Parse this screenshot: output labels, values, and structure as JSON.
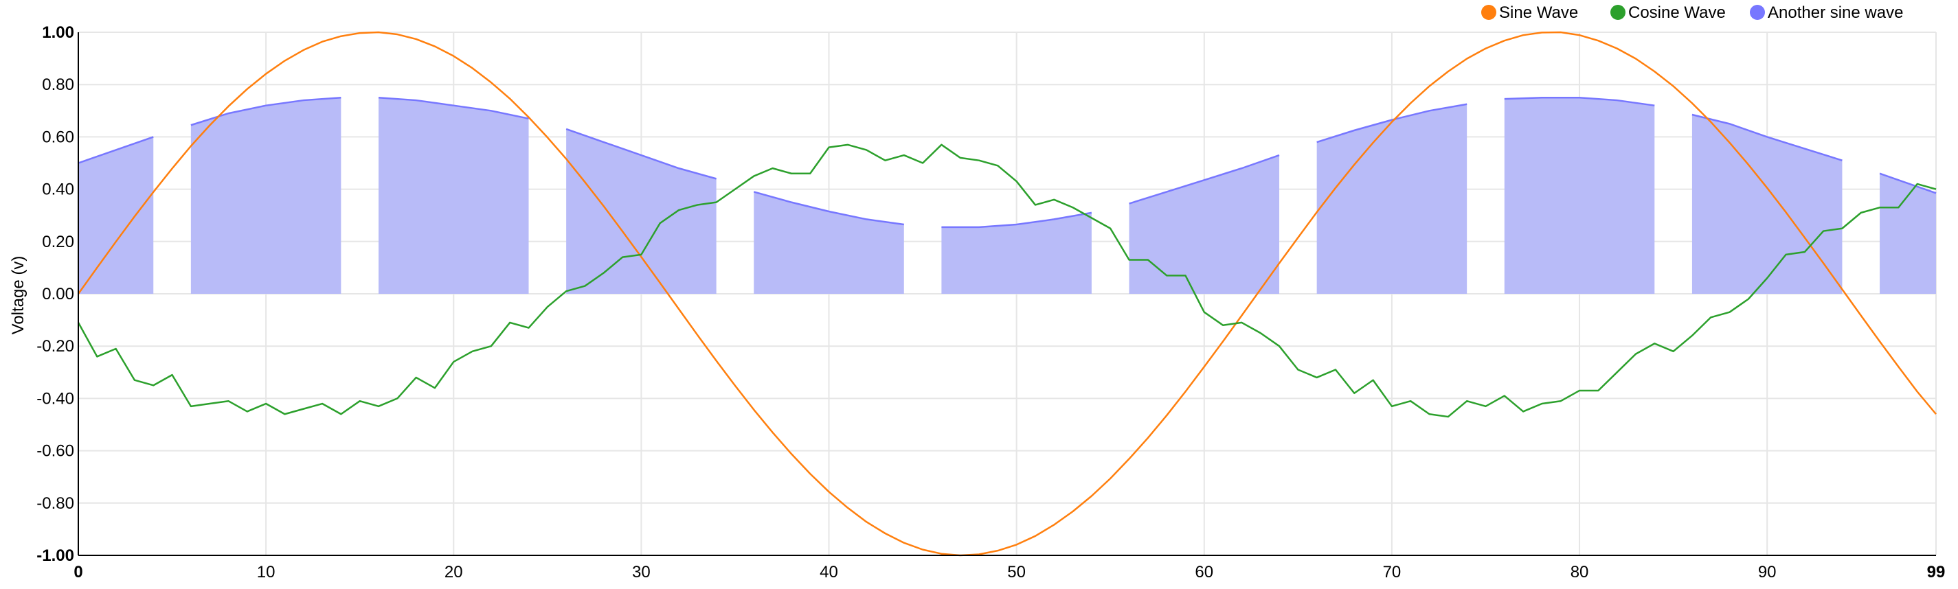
{
  "chart_data": {
    "type": "line",
    "title": "",
    "xlabel": "",
    "ylabel": "Voltage (v)",
    "xlim": [
      0,
      99
    ],
    "ylim": [
      -1,
      1
    ],
    "x_ticks": [
      "0",
      "10",
      "20",
      "30",
      "40",
      "50",
      "60",
      "70",
      "80",
      "90",
      "99"
    ],
    "y_ticks": [
      "1.00",
      "0.80",
      "0.60",
      "0.40",
      "0.20",
      "0.00",
      "-0.20",
      "-0.40",
      "-0.60",
      "-0.80",
      "-1.00"
    ],
    "grid": true,
    "legend_position": "top-right",
    "x": [
      0,
      1,
      2,
      3,
      4,
      5,
      6,
      7,
      8,
      9,
      10,
      11,
      12,
      13,
      14,
      15,
      16,
      17,
      18,
      19,
      20,
      21,
      22,
      23,
      24,
      25,
      26,
      27,
      28,
      29,
      30,
      31,
      32,
      33,
      34,
      35,
      36,
      37,
      38,
      39,
      40,
      41,
      42,
      43,
      44,
      45,
      46,
      47,
      48,
      49,
      50,
      51,
      52,
      53,
      54,
      55,
      56,
      57,
      58,
      59,
      60,
      61,
      62,
      63,
      64,
      65,
      66,
      67,
      68,
      69,
      70,
      71,
      72,
      73,
      74,
      75,
      76,
      77,
      78,
      79,
      80,
      81,
      82,
      83,
      84,
      85,
      86,
      87,
      88,
      89,
      90,
      91,
      92,
      93,
      94,
      95,
      96,
      97,
      98,
      99
    ],
    "series": [
      {
        "name": "Sine Wave",
        "color": "#ff7f0e",
        "style": "line",
        "values": [
          0.0,
          0.1,
          0.199,
          0.296,
          0.389,
          0.479,
          0.565,
          0.644,
          0.717,
          0.783,
          0.841,
          0.891,
          0.932,
          0.964,
          0.985,
          0.997,
          1.0,
          0.992,
          0.974,
          0.946,
          0.909,
          0.863,
          0.808,
          0.746,
          0.675,
          0.598,
          0.516,
          0.427,
          0.335,
          0.239,
          0.141,
          0.042,
          -0.058,
          -0.158,
          -0.256,
          -0.351,
          -0.443,
          -0.53,
          -0.612,
          -0.688,
          -0.757,
          -0.818,
          -0.872,
          -0.916,
          -0.952,
          -0.978,
          -0.994,
          -1.0,
          -0.996,
          -0.982,
          -0.959,
          -0.926,
          -0.883,
          -0.832,
          -0.773,
          -0.706,
          -0.631,
          -0.551,
          -0.465,
          -0.374,
          -0.279,
          -0.182,
          -0.083,
          0.017,
          0.117,
          0.215,
          0.312,
          0.405,
          0.494,
          0.578,
          0.657,
          0.729,
          0.794,
          0.85,
          0.899,
          0.938,
          0.968,
          0.989,
          0.999,
          1.0,
          0.989,
          0.968,
          0.938,
          0.899,
          0.85,
          0.794,
          0.729,
          0.657,
          0.578,
          0.494,
          0.405,
          0.312,
          0.215,
          0.117,
          0.017,
          -0.083,
          -0.182,
          -0.279,
          -0.374,
          -0.46
        ]
      },
      {
        "name": "Cosine Wave",
        "color": "#2ca02c",
        "style": "line",
        "values": [
          -0.11,
          -0.24,
          -0.21,
          -0.33,
          -0.35,
          -0.31,
          -0.43,
          -0.42,
          -0.41,
          -0.45,
          -0.42,
          -0.46,
          -0.44,
          -0.42,
          -0.46,
          -0.41,
          -0.43,
          -0.4,
          -0.32,
          -0.36,
          -0.26,
          -0.22,
          -0.2,
          -0.11,
          -0.13,
          -0.05,
          0.01,
          0.03,
          0.08,
          0.14,
          0.15,
          0.27,
          0.32,
          0.34,
          0.35,
          0.4,
          0.45,
          0.48,
          0.46,
          0.46,
          0.56,
          0.57,
          0.55,
          0.51,
          0.53,
          0.5,
          0.57,
          0.52,
          0.51,
          0.49,
          0.43,
          0.34,
          0.36,
          0.33,
          0.29,
          0.25,
          0.13,
          0.13,
          0.07,
          0.07,
          -0.07,
          -0.12,
          -0.11,
          -0.15,
          -0.2,
          -0.29,
          -0.32,
          -0.29,
          -0.38,
          -0.33,
          -0.43,
          -0.41,
          -0.46,
          -0.47,
          -0.41,
          -0.43,
          -0.39,
          -0.45,
          -0.42,
          -0.41,
          -0.37,
          -0.37,
          -0.3,
          -0.23,
          -0.19,
          -0.22,
          -0.16,
          -0.09,
          -0.07,
          -0.02,
          0.06,
          0.15,
          0.16,
          0.24,
          0.25,
          0.31,
          0.33,
          0.33,
          0.42,
          0.4
        ]
      },
      {
        "name": "Another sine wave",
        "color": "#7777ff",
        "fill": "#b8bbf8",
        "style": "area",
        "segments": [
          {
            "x": [
              0,
              4
            ],
            "values": [
              0.5,
              0.6
            ]
          },
          {
            "x": [
              6,
              8,
              10,
              12,
              14
            ],
            "values": [
              0.645,
              0.69,
              0.72,
              0.74,
              0.75
            ]
          },
          {
            "x": [
              16,
              18,
              20,
              22,
              24
            ],
            "values": [
              0.75,
              0.74,
              0.72,
              0.7,
              0.67
            ]
          },
          {
            "x": [
              26,
              28,
              30,
              32,
              34
            ],
            "values": [
              0.63,
              0.58,
              0.53,
              0.48,
              0.44
            ]
          },
          {
            "x": [
              36,
              38,
              40,
              42,
              44
            ],
            "values": [
              0.39,
              0.35,
              0.315,
              0.285,
              0.265
            ]
          },
          {
            "x": [
              46,
              48,
              50,
              52,
              54
            ],
            "values": [
              0.255,
              0.255,
              0.265,
              0.285,
              0.31
            ]
          },
          {
            "x": [
              56,
              58,
              60,
              62,
              64
            ],
            "values": [
              0.345,
              0.39,
              0.435,
              0.48,
              0.53
            ]
          },
          {
            "x": [
              66,
              68,
              70,
              72,
              74
            ],
            "values": [
              0.58,
              0.625,
              0.665,
              0.7,
              0.725
            ]
          },
          {
            "x": [
              76,
              78,
              80,
              82,
              84
            ],
            "values": [
              0.745,
              0.75,
              0.75,
              0.74,
              0.72
            ]
          },
          {
            "x": [
              86,
              88,
              90,
              92,
              94
            ],
            "values": [
              0.685,
              0.65,
              0.6,
              0.555,
              0.51
            ]
          },
          {
            "x": [
              96,
              99
            ],
            "values": [
              0.46,
              0.385
            ]
          }
        ]
      }
    ]
  }
}
